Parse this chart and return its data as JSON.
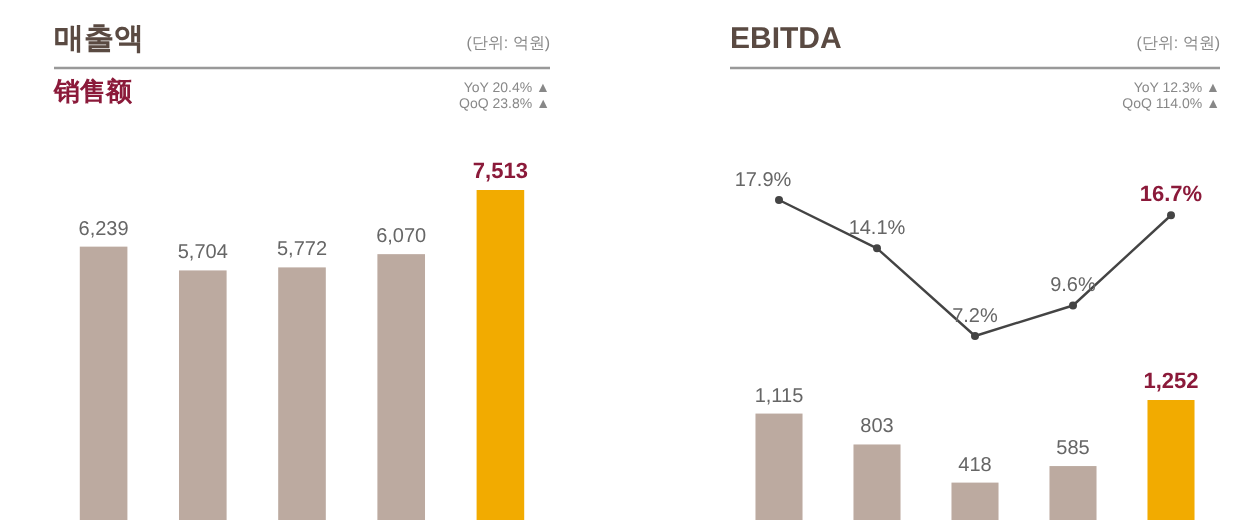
{
  "chart_data": [
    {
      "type": "bar",
      "title": "매출액",
      "subtitle": "销售额",
      "annotations": [
        "(단위: 억원)",
        "YoY 20.4% ▲",
        "QoQ 23.8% ▲"
      ],
      "categories": [
        null,
        null,
        null,
        null,
        null
      ],
      "values": [
        6239,
        5704,
        5772,
        6070,
        7513
      ],
      "colors": [
        "#bcaaa0",
        "#bcaaa0",
        "#bcaaa0",
        "#bcaaa0",
        "#f2ab00"
      ],
      "value_labels": [
        "6,239",
        "5,704",
        "5,772",
        "6,070",
        "7,513"
      ]
    },
    {
      "type": "line",
      "title": "EBITDA",
      "annotations": [
        "(단위: 억원)",
        "YoY 12.3% ▲",
        "QoQ 114.0% ▲"
      ],
      "categories": [
        null,
        null,
        null,
        null,
        null
      ],
      "color": "#444444",
      "marker": "circle",
      "values": [
        17.9,
        14.1,
        7.2,
        9.6,
        16.7
      ],
      "value_labels": [
        "17.9%",
        "14.1%",
        "7.2%",
        "9.6%",
        "16.7%"
      ]
    },
    {
      "type": "bar",
      "categories": [
        null,
        null,
        null,
        null,
        null
      ],
      "values": [
        1115,
        803,
        418,
        585,
        1252
      ],
      "colors": [
        "#bcaaa0",
        "#bcaaa0",
        "#bcaaa0",
        "#bcaaa0",
        "#f2ab00"
      ],
      "value_labels": [
        "1,115",
        "803",
        "418",
        "585",
        "1,252"
      ]
    }
  ]
}
